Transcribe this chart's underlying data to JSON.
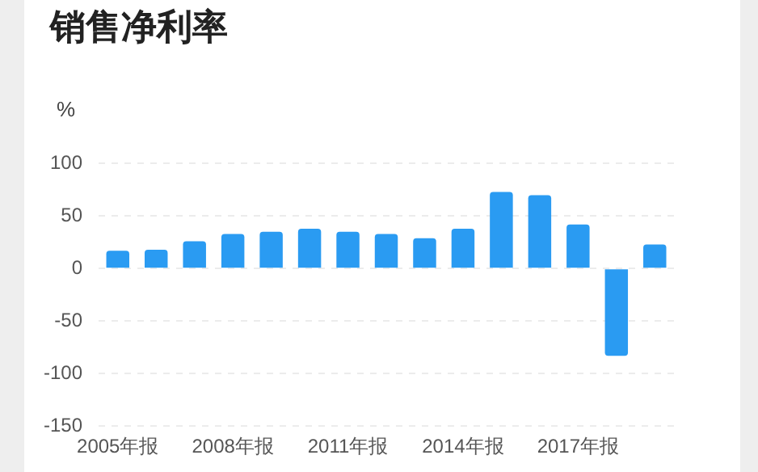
{
  "chart_data": {
    "type": "bar",
    "title": "销售净利率",
    "ylabel": "%",
    "categories": [
      "2005年报",
      null,
      null,
      "2008年报",
      null,
      null,
      "2011年报",
      null,
      null,
      "2014年报",
      null,
      null,
      "2017年报",
      null,
      null
    ],
    "values": [
      17,
      18,
      26,
      33,
      35,
      38,
      35,
      33,
      29,
      38,
      73,
      70,
      42,
      -83,
      23
    ],
    "color": "#2a9bf2",
    "ylim": [
      -150,
      100
    ],
    "yticks": [
      -150,
      -100,
      -50,
      0,
      50,
      100
    ],
    "grid": "y",
    "legend": false
  }
}
